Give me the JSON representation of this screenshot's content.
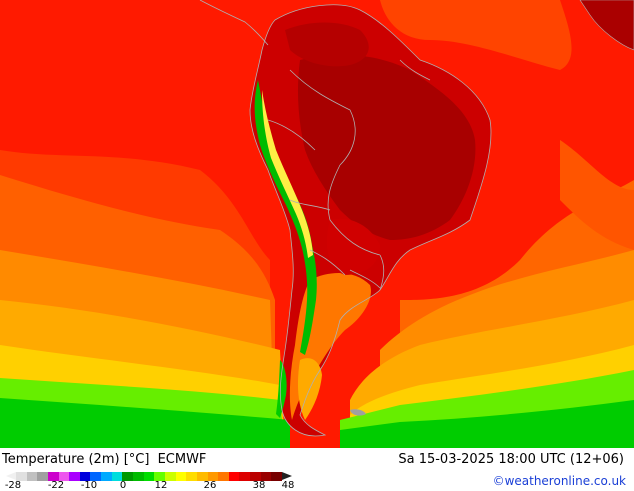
{
  "map": {
    "parameter_label": "Temperature (2m) [°C]",
    "model_label": "ECMWF",
    "valid_time": "Sa 15-03-2025 18:00 UTC (12+06)",
    "credit": "©weatheronline.co.uk",
    "region": "South America",
    "colors": {
      "ocean_deep_red": "#ff0000",
      "ocean_red_orange": "#ff3300",
      "ocean_orange": "#ff6600",
      "ocean_orange_light": "#ff8800",
      "ocean_amber": "#ffaa00",
      "ocean_yellow": "#ffcc00",
      "ocean_green_light": "#55ee00",
      "ocean_green": "#00cc00",
      "land_dark_red": "#b30000",
      "land_crimson": "#cc0000",
      "andes_green": "#00bb00",
      "andes_yellow": "#ffee44",
      "border_gray": "#b0b0b0"
    }
  },
  "legend": {
    "ticks": [
      "-28",
      "-22",
      "-10",
      "0",
      "12",
      "26",
      "38",
      "48"
    ],
    "colors": [
      "#e0e0e0",
      "#c0c0c0",
      "#a0a0a0",
      "#cc00cc",
      "#ee55ee",
      "#aa00ff",
      "#0000dd",
      "#0066ff",
      "#00aaff",
      "#00dddd",
      "#009900",
      "#00bb00",
      "#00dd00",
      "#66ff00",
      "#ccff00",
      "#ffff00",
      "#ffdd00",
      "#ffbb00",
      "#ff9900",
      "#ff7700",
      "#ff0000",
      "#dd0000",
      "#bb0000",
      "#990000",
      "#770000"
    ]
  }
}
